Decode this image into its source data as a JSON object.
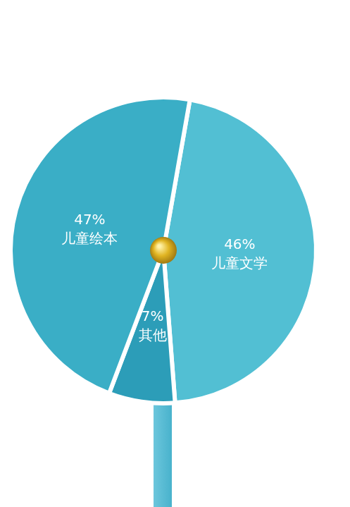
{
  "chart_data": {
    "type": "pie",
    "categories": [
      "儿童绘本",
      "儿童文学",
      "其他"
    ],
    "values": [
      47,
      46,
      7
    ],
    "value_labels": [
      "47%",
      "46%",
      "7%"
    ],
    "colors": [
      "#3aaec6",
      "#52bfd3",
      "#2c9db8"
    ],
    "data_labels": true
  }
}
